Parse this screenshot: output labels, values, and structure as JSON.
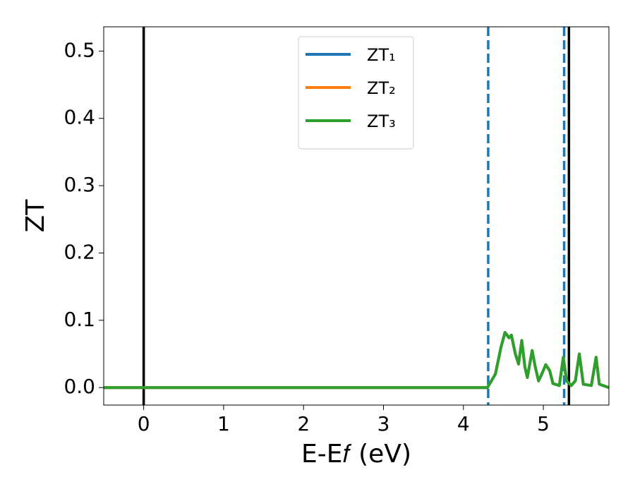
{
  "chart_data": {
    "type": "line",
    "xlabel": "E-E𝑓 (eV)",
    "ylabel": "ZT",
    "xlim": [
      -0.5,
      5.82
    ],
    "ylim": [
      -0.026,
      0.536
    ],
    "xticks": [
      0,
      1,
      2,
      3,
      4,
      5
    ],
    "yticks": [
      {
        "value": 0,
        "label": "0.0"
      },
      {
        "value": 0.1,
        "label": "0.1"
      },
      {
        "value": 0.2,
        "label": "0.2"
      },
      {
        "value": 0.3,
        "label": "0.3"
      },
      {
        "value": 0.4,
        "label": "0.4"
      },
      {
        "value": 0.5,
        "label": "0.5"
      }
    ],
    "x": [
      -0.5,
      4.3,
      4.4,
      4.47,
      4.52,
      4.57,
      4.6,
      4.65,
      4.69,
      4.73,
      4.77,
      4.8,
      4.86,
      4.9,
      4.94,
      4.98,
      5.03,
      5.08,
      5.12,
      5.2,
      5.25,
      5.29,
      5.35,
      5.4,
      5.45,
      5.5,
      5.6,
      5.66,
      5.7,
      5.75,
      5.82
    ],
    "series": [
      {
        "name": "ZT₁",
        "color": "#1f77b4",
        "values": [
          0,
          0,
          0.02,
          0.06,
          0.082,
          0.074,
          0.078,
          0.05,
          0.035,
          0.07,
          0.03,
          0.015,
          0.055,
          0.03,
          0.01,
          0.02,
          0.034,
          0.025,
          0.006,
          0.003,
          0.045,
          0.01,
          0.003,
          0.01,
          0.05,
          0.005,
          0.003,
          0.045,
          0.005,
          0.003,
          0
        ]
      },
      {
        "name": "ZT₂",
        "color": "#ff7f0e",
        "values": [
          0,
          0,
          0.02,
          0.06,
          0.082,
          0.074,
          0.078,
          0.05,
          0.035,
          0.07,
          0.03,
          0.015,
          0.055,
          0.03,
          0.01,
          0.02,
          0.034,
          0.025,
          0.006,
          0.003,
          0.045,
          0.01,
          0.003,
          0.01,
          0.05,
          0.005,
          0.003,
          0.045,
          0.005,
          0.003,
          0
        ]
      },
      {
        "name": "ZT₃",
        "color": "#2ca02c",
        "values": [
          0,
          0,
          0.02,
          0.06,
          0.082,
          0.074,
          0.078,
          0.05,
          0.035,
          0.07,
          0.03,
          0.015,
          0.055,
          0.03,
          0.01,
          0.02,
          0.034,
          0.025,
          0.006,
          0.003,
          0.045,
          0.01,
          0.003,
          0.01,
          0.05,
          0.005,
          0.003,
          0.045,
          0.005,
          0.003,
          0
        ]
      }
    ],
    "vlines": [
      {
        "x": 0,
        "color": "#000000",
        "style": "solid"
      },
      {
        "x": 5.32,
        "color": "#000000",
        "style": "solid"
      },
      {
        "x": 4.31,
        "color": "#1f77b4",
        "style": "dashed"
      },
      {
        "x": 5.26,
        "color": "#1f77b4",
        "style": "dashed"
      }
    ],
    "legend": "upper center"
  }
}
